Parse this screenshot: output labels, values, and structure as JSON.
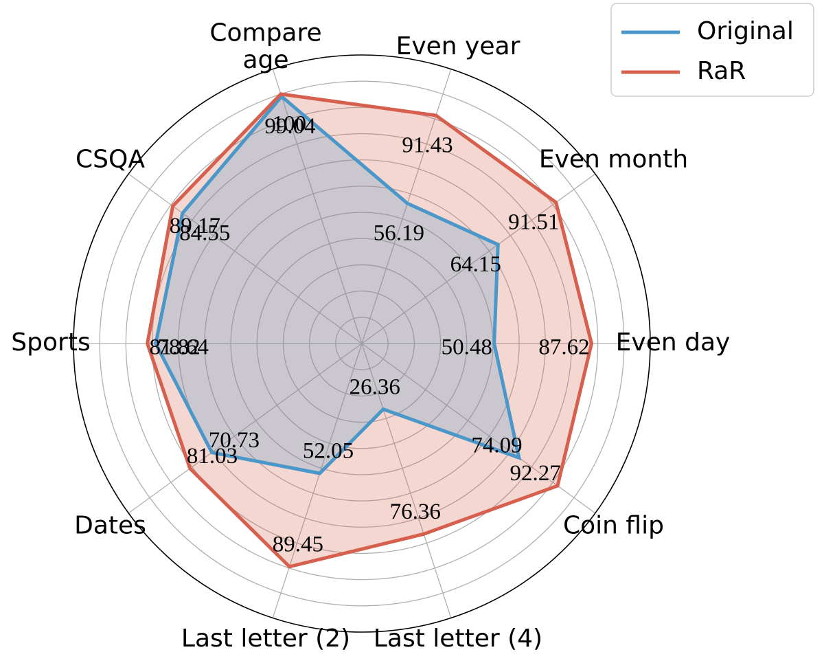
{
  "chart_data": {
    "type": "radar",
    "categories": [
      "Even day",
      "Even month",
      "Even year",
      "Compare\nage",
      "CSQA",
      "Sports",
      "Dates",
      "Last letter (2)",
      "Last letter (4)",
      "Coin flip"
    ],
    "series": [
      {
        "name": "Original",
        "color": "#4a97c9",
        "values": [
          50.48,
          64.15,
          56.19,
          99.04,
          84.55,
          78.64,
          70.73,
          52.05,
          26.36,
          74.09
        ]
      },
      {
        "name": "RaR",
        "color": "#d6604d",
        "values": [
          87.62,
          91.51,
          91.43,
          100,
          89.17,
          81.82,
          81.03,
          89.45,
          76.36,
          92.27
        ]
      }
    ],
    "ylim": [
      0,
      110
    ],
    "yticks": [
      10,
      20,
      30,
      40,
      50,
      60,
      70,
      80,
      90,
      100
    ],
    "grid": true,
    "legend": "upper right"
  }
}
